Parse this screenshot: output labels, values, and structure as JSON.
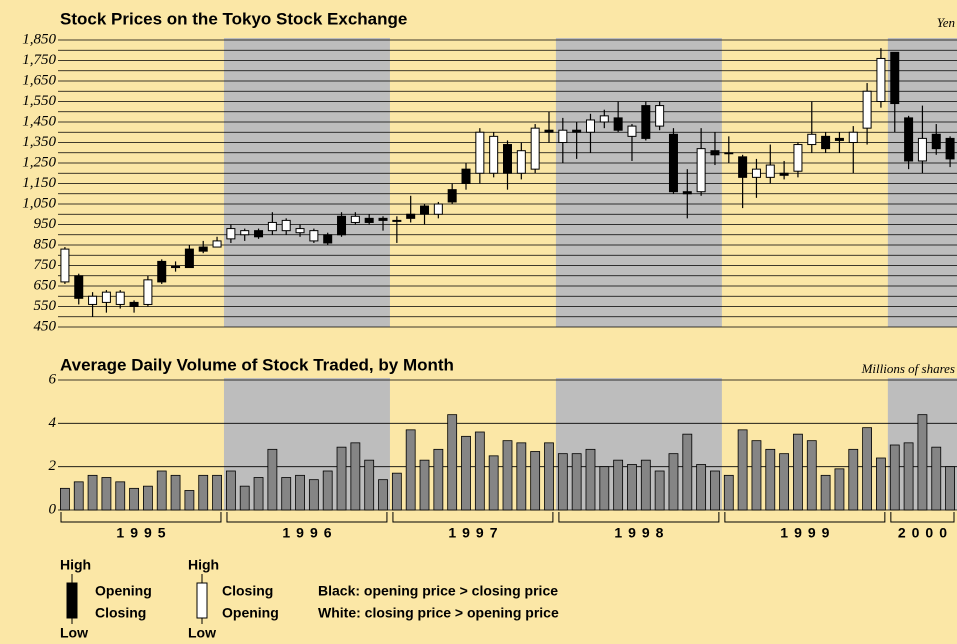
{
  "chart_data": [
    {
      "type": "candlestick",
      "title": "Stock Prices on the Tokyo Stock Exchange",
      "unit_label": "Yen",
      "categories": [
        null,
        null,
        null,
        null,
        null,
        null,
        null,
        null,
        null,
        null,
        null,
        null,
        null,
        null,
        null,
        null,
        null,
        null,
        null,
        null,
        null,
        null,
        null,
        null,
        null,
        null,
        null,
        null,
        null,
        null,
        null,
        null,
        null,
        null,
        null,
        null,
        null,
        null,
        null,
        null,
        null,
        null,
        null,
        null,
        null,
        null,
        null,
        null,
        null,
        null,
        null,
        null,
        null,
        null,
        null,
        null,
        null,
        null,
        null,
        null,
        null,
        null,
        null,
        null,
        null
      ],
      "open": [
        670,
        700,
        560,
        570,
        560,
        570,
        560,
        770,
        740,
        830,
        840,
        840,
        880,
        900,
        920,
        920,
        920,
        910,
        870,
        900,
        990,
        960,
        980,
        980,
        970,
        1000,
        1040,
        1000,
        1120,
        1220,
        1200,
        1200,
        1340,
        1200,
        1220,
        1410,
        1350,
        1410,
        1400,
        1450,
        1470,
        1380,
        1530,
        1430,
        1390,
        1110,
        1110,
        1310,
        1300,
        1280,
        1180,
        1180,
        1200,
        1210,
        1340,
        1380,
        1370,
        1350,
        1420,
        1550,
        1790,
        1470,
        1260,
        1390,
        1370
      ],
      "close": [
        830,
        590,
        600,
        620,
        620,
        550,
        680,
        670,
        745,
        740,
        820,
        870,
        930,
        920,
        890,
        960,
        970,
        930,
        920,
        860,
        900,
        990,
        960,
        970,
        970,
        980,
        1000,
        1050,
        1060,
        1150,
        1400,
        1380,
        1200,
        1310,
        1420,
        1400,
        1410,
        1400,
        1460,
        1480,
        1410,
        1430,
        1370,
        1530,
        1110,
        1100,
        1320,
        1290,
        1300,
        1180,
        1220,
        1240,
        1190,
        1340,
        1390,
        1320,
        1360,
        1400,
        1600,
        1760,
        1540,
        1260,
        1370,
        1320,
        1270
      ],
      "high": [
        840,
        710,
        620,
        630,
        630,
        580,
        700,
        780,
        770,
        850,
        870,
        890,
        950,
        930,
        930,
        1010,
        980,
        950,
        930,
        910,
        1010,
        1010,
        1000,
        990,
        990,
        1090,
        1050,
        1060,
        1150,
        1250,
        1420,
        1400,
        1360,
        1350,
        1440,
        1500,
        1470,
        1450,
        1490,
        1510,
        1550,
        1440,
        1550,
        1550,
        1420,
        1220,
        1420,
        1400,
        1380,
        1290,
        1270,
        1340,
        1260,
        1350,
        1550,
        1400,
        1400,
        1430,
        1640,
        1810,
        1790,
        1480,
        1530,
        1440,
        1380
      ],
      "low": [
        660,
        560,
        500,
        520,
        540,
        520,
        550,
        660,
        720,
        740,
        810,
        840,
        860,
        870,
        880,
        900,
        900,
        890,
        860,
        850,
        890,
        950,
        950,
        920,
        860,
        960,
        950,
        980,
        1050,
        1120,
        1150,
        1180,
        1120,
        1170,
        1200,
        1350,
        1250,
        1270,
        1300,
        1420,
        1400,
        1260,
        1360,
        1410,
        1100,
        980,
        1090,
        1240,
        1250,
        1030,
        1080,
        1150,
        1170,
        1180,
        1300,
        1300,
        1300,
        1200,
        1340,
        1520,
        1400,
        1220,
        1200,
        1290,
        1230
      ],
      "year_labels": [
        "1995",
        "1996",
        "1997",
        "1998",
        "1999",
        "2000"
      ],
      "ylim": [
        450,
        1850
      ],
      "yticks": [
        450,
        550,
        650,
        750,
        850,
        950,
        {
          "value": 1050,
          "label": "1,050"
        },
        {
          "value": 1150,
          "label": "1,150"
        },
        {
          "value": 1250,
          "label": "1,250"
        },
        {
          "value": 1350,
          "label": "1,350"
        },
        {
          "value": 1450,
          "label": "1,450"
        },
        {
          "value": 1550,
          "label": "1,550"
        },
        {
          "value": 1650,
          "label": "1,650"
        },
        {
          "value": 1750,
          "label": "1,750"
        },
        {
          "value": 1850,
          "label": "1,850"
        }
      ],
      "minor_yticks": [
        500,
        600,
        700,
        800,
        900,
        1000,
        1100,
        1200,
        1300,
        1400,
        1500,
        1600,
        1700,
        1800
      ],
      "up_color": "#ffffff",
      "down_color": "#000000",
      "grid": true
    },
    {
      "type": "bar",
      "title": "Average Daily Volume of Stock Traded, by Month",
      "unit_label": "Millions of shares",
      "values": [
        1.0,
        1.3,
        1.6,
        1.5,
        1.3,
        1.0,
        1.1,
        1.8,
        1.6,
        0.9,
        1.6,
        1.6,
        1.8,
        1.1,
        1.5,
        2.8,
        1.5,
        1.6,
        1.4,
        1.8,
        2.9,
        3.1,
        2.3,
        1.4,
        1.7,
        3.7,
        2.3,
        2.8,
        4.4,
        3.4,
        3.6,
        2.5,
        3.2,
        3.1,
        2.7,
        3.1,
        2.6,
        2.6,
        2.8,
        2.0,
        2.3,
        2.1,
        2.3,
        1.8,
        2.6,
        3.5,
        2.1,
        1.8,
        1.6,
        3.7,
        3.2,
        2.8,
        2.6,
        3.5,
        3.2,
        1.6,
        1.9,
        2.8,
        3.8,
        2.4,
        3.0,
        3.1,
        4.4,
        2.9,
        2.0
      ],
      "color": "#858585",
      "ylim": [
        0,
        6
      ],
      "yticks": [
        0,
        2,
        4,
        6
      ],
      "grid": true
    }
  ],
  "legend": {
    "black": {
      "high": "High",
      "top": "Opening",
      "bottom": "Closing",
      "low": "Low"
    },
    "white": {
      "high": "High",
      "top": "Closing",
      "bottom": "Opening",
      "low": "Low"
    },
    "notes": [
      "Black: opening price > closing price",
      "White: closing price > opening price"
    ]
  }
}
